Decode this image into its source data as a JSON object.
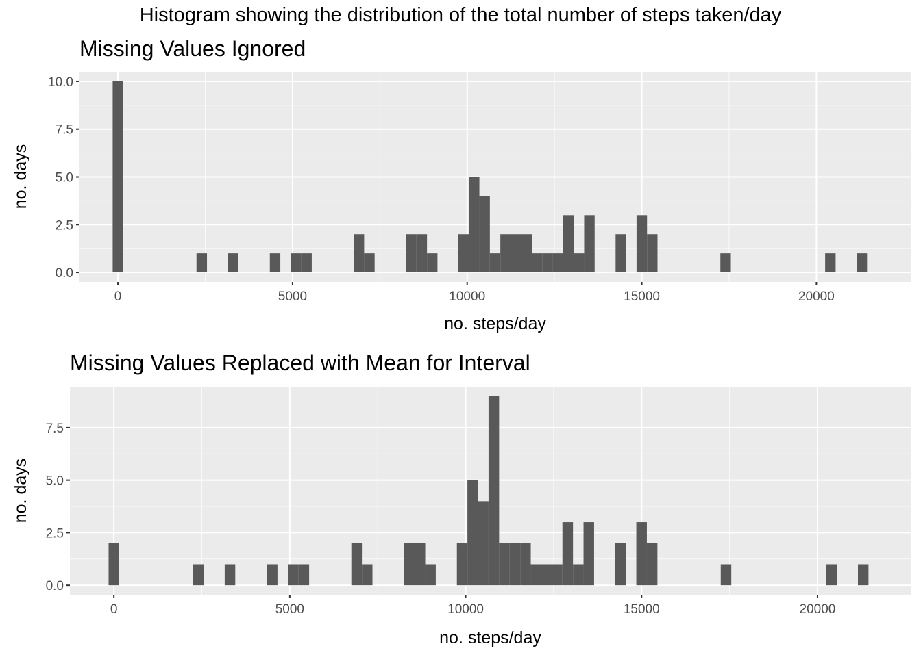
{
  "title": "Histogram showing the distribution of the total number of steps taken/day",
  "chart_data": [
    {
      "type": "bar",
      "subtitle": "Missing Values Ignored",
      "xlabel": "no. steps/day",
      "ylabel": "no. days",
      "bin_width": 300,
      "xlim": [
        -1100,
        22700
      ],
      "ylim": [
        -0.5,
        10.5
      ],
      "xticks": [
        0,
        5000,
        10000,
        15000,
        20000
      ],
      "yticks": [
        0.0,
        2.5,
        5.0,
        7.5,
        10.0
      ],
      "ytick_labels": [
        "0.0",
        "2.5",
        "5.0",
        "7.5",
        "10.0"
      ],
      "grid": true,
      "bar_color": "#595959",
      "panel_bg": "#ebebeb",
      "bins": [
        {
          "x": 0,
          "count": 10
        },
        {
          "x": 2400,
          "count": 1
        },
        {
          "x": 3300,
          "count": 1
        },
        {
          "x": 4500,
          "count": 1
        },
        {
          "x": 5100,
          "count": 1
        },
        {
          "x": 5400,
          "count": 1
        },
        {
          "x": 6900,
          "count": 2
        },
        {
          "x": 7200,
          "count": 1
        },
        {
          "x": 8400,
          "count": 2
        },
        {
          "x": 8700,
          "count": 2
        },
        {
          "x": 9000,
          "count": 1
        },
        {
          "x": 9900,
          "count": 2
        },
        {
          "x": 10200,
          "count": 5
        },
        {
          "x": 10500,
          "count": 4
        },
        {
          "x": 10800,
          "count": 1
        },
        {
          "x": 11100,
          "count": 2
        },
        {
          "x": 11400,
          "count": 2
        },
        {
          "x": 11700,
          "count": 2
        },
        {
          "x": 12000,
          "count": 1
        },
        {
          "x": 12300,
          "count": 1
        },
        {
          "x": 12600,
          "count": 1
        },
        {
          "x": 12900,
          "count": 3
        },
        {
          "x": 13200,
          "count": 1
        },
        {
          "x": 13500,
          "count": 3
        },
        {
          "x": 14400,
          "count": 2
        },
        {
          "x": 15000,
          "count": 3
        },
        {
          "x": 15300,
          "count": 2
        },
        {
          "x": 17400,
          "count": 1
        },
        {
          "x": 20400,
          "count": 1
        },
        {
          "x": 21300,
          "count": 1
        }
      ]
    },
    {
      "type": "bar",
      "subtitle": "Missing Values Replaced with Mean for Interval",
      "xlabel": "no. steps/day",
      "ylabel": "no. days",
      "bin_width": 300,
      "xlim": [
        -1250,
        22650
      ],
      "ylim": [
        -0.45,
        9.45
      ],
      "xticks": [
        0,
        5000,
        10000,
        15000,
        20000
      ],
      "yticks": [
        0.0,
        2.5,
        5.0,
        7.5
      ],
      "ytick_labels": [
        "0.0",
        "2.5",
        "5.0",
        "7.5"
      ],
      "grid": true,
      "bar_color": "#595959",
      "panel_bg": "#ebebeb",
      "bins": [
        {
          "x": 0,
          "count": 2
        },
        {
          "x": 2400,
          "count": 1
        },
        {
          "x": 3300,
          "count": 1
        },
        {
          "x": 4500,
          "count": 1
        },
        {
          "x": 5100,
          "count": 1
        },
        {
          "x": 5400,
          "count": 1
        },
        {
          "x": 6900,
          "count": 2
        },
        {
          "x": 7200,
          "count": 1
        },
        {
          "x": 8400,
          "count": 2
        },
        {
          "x": 8700,
          "count": 2
        },
        {
          "x": 9000,
          "count": 1
        },
        {
          "x": 9900,
          "count": 2
        },
        {
          "x": 10200,
          "count": 5
        },
        {
          "x": 10500,
          "count": 4
        },
        {
          "x": 10800,
          "count": 9
        },
        {
          "x": 11100,
          "count": 2
        },
        {
          "x": 11400,
          "count": 2
        },
        {
          "x": 11700,
          "count": 2
        },
        {
          "x": 12000,
          "count": 1
        },
        {
          "x": 12300,
          "count": 1
        },
        {
          "x": 12600,
          "count": 1
        },
        {
          "x": 12900,
          "count": 3
        },
        {
          "x": 13200,
          "count": 1
        },
        {
          "x": 13500,
          "count": 3
        },
        {
          "x": 14400,
          "count": 2
        },
        {
          "x": 15000,
          "count": 3
        },
        {
          "x": 15300,
          "count": 2
        },
        {
          "x": 17400,
          "count": 1
        },
        {
          "x": 20400,
          "count": 1
        },
        {
          "x": 21300,
          "count": 1
        }
      ]
    }
  ]
}
